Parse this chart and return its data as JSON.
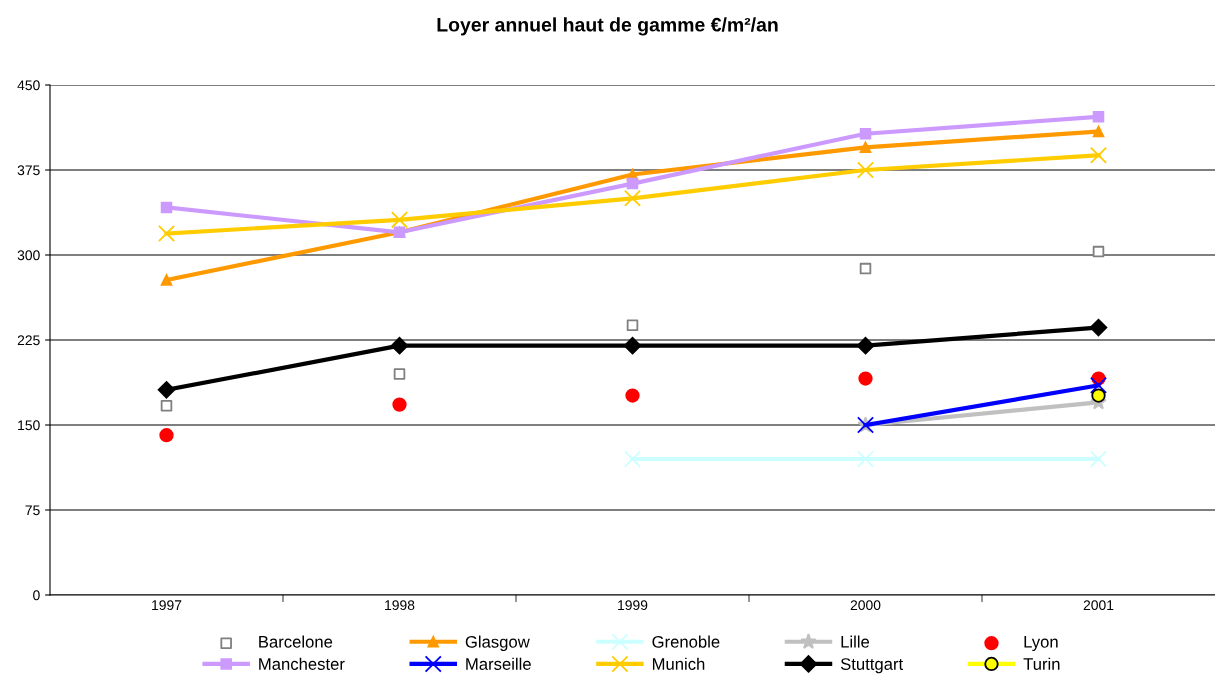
{
  "chart_data": {
    "type": "line",
    "title": "Loyer annuel haut de gamme €/m²/an",
    "categories": [
      "1997",
      "1998",
      "1999",
      "2000",
      "2001"
    ],
    "ylim": [
      0,
      450
    ],
    "yticks": [
      0,
      75,
      150,
      225,
      300,
      375,
      450
    ],
    "grid": "y",
    "legend": "bottom",
    "series": [
      {
        "name": "Barcelone",
        "type": "scatter",
        "color": "#808080",
        "marker": "square",
        "values": [
          167,
          195,
          238,
          288,
          303
        ]
      },
      {
        "name": "Glasgow",
        "color": "#ff9900",
        "marker": "triangle",
        "line_style": "solid",
        "values": [
          278,
          320,
          371,
          395,
          409
        ]
      },
      {
        "name": "Grenoble",
        "color": "#ccffff",
        "marker": "cross",
        "line_style": "solid",
        "values": [
          null,
          null,
          120,
          120,
          120
        ]
      },
      {
        "name": "Lille",
        "color": "#c0c0c0",
        "marker": "star",
        "line_style": "solid",
        "values": [
          null,
          null,
          null,
          150,
          170
        ]
      },
      {
        "name": "Lyon",
        "type": "scatter",
        "color": "#ff0000",
        "marker": "circle",
        "values": [
          141,
          168,
          176,
          191,
          191
        ]
      },
      {
        "name": "Manchester",
        "color": "#cc99ff",
        "marker": "square",
        "line_style": "solid",
        "values": [
          342,
          320,
          363,
          407,
          422
        ]
      },
      {
        "name": "Marseille",
        "color": "#0000ff",
        "marker": "cross",
        "line_style": "solid",
        "values": [
          null,
          null,
          null,
          150,
          185
        ]
      },
      {
        "name": "Munich",
        "color": "#ffcc00",
        "marker": "cross",
        "line_style": "solid",
        "values": [
          319,
          331,
          350,
          375,
          388
        ]
      },
      {
        "name": "Stuttgart",
        "color": "#000000",
        "marker": "diamond",
        "line_style": "solid",
        "values": [
          181,
          220,
          220,
          220,
          236
        ]
      },
      {
        "name": "Turin",
        "color": "#ffff00",
        "marker": "circle",
        "line_style": "solid",
        "values": [
          null,
          null,
          null,
          null,
          176
        ]
      }
    ]
  }
}
